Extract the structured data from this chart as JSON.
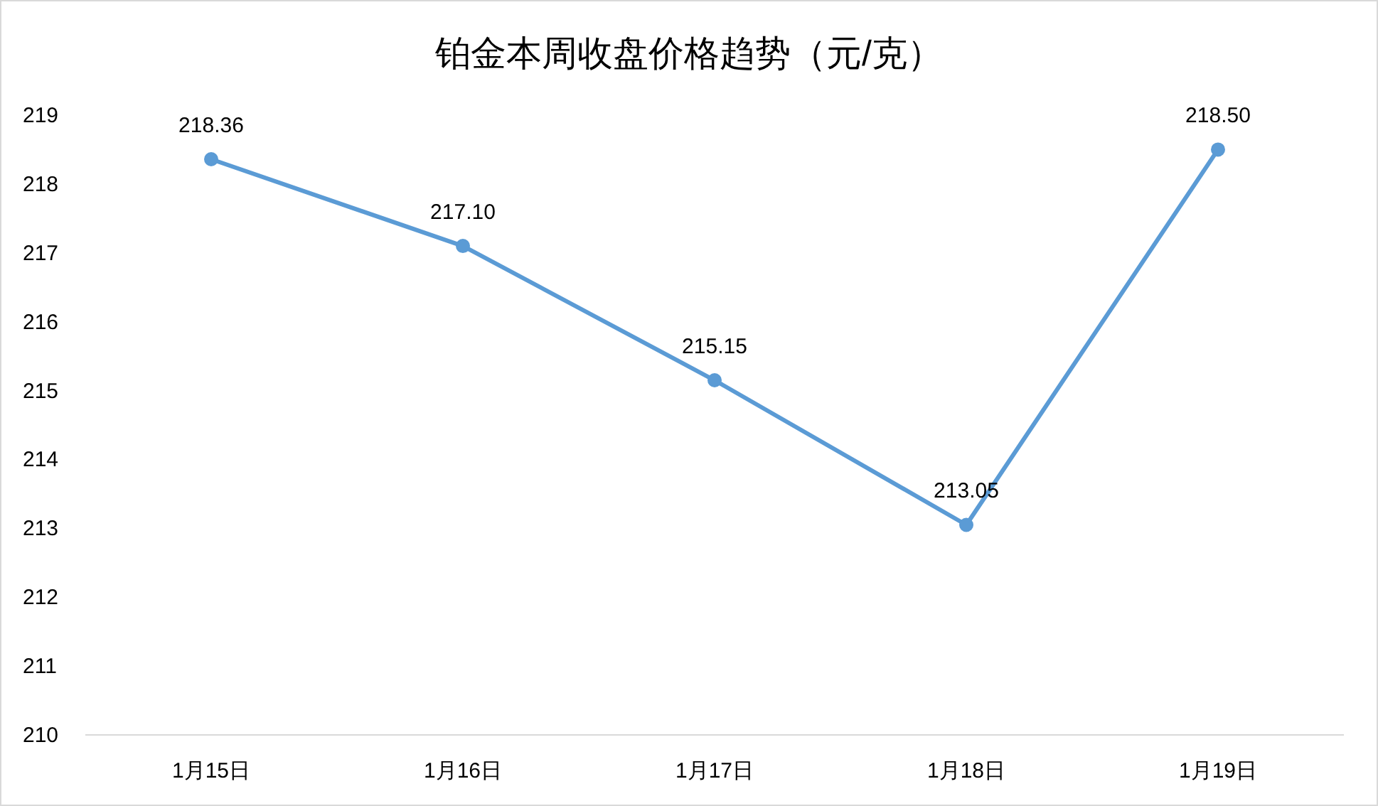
{
  "chart_data": {
    "type": "line",
    "title": "铂金本周收盘价格趋势（元/克）",
    "categories": [
      "1月15日",
      "1月16日",
      "1月17日",
      "1月18日",
      "1月19日"
    ],
    "values": [
      218.36,
      217.1,
      215.15,
      213.05,
      218.5
    ],
    "value_labels": [
      "218.36",
      "217.10",
      "215.15",
      "213.05",
      "218.50"
    ],
    "color": "#5b9bd5",
    "marker": "circle",
    "grid": false,
    "ylim": [
      210,
      219
    ],
    "yticks": [
      210,
      211,
      212,
      213,
      214,
      215,
      216,
      217,
      218,
      219
    ]
  }
}
